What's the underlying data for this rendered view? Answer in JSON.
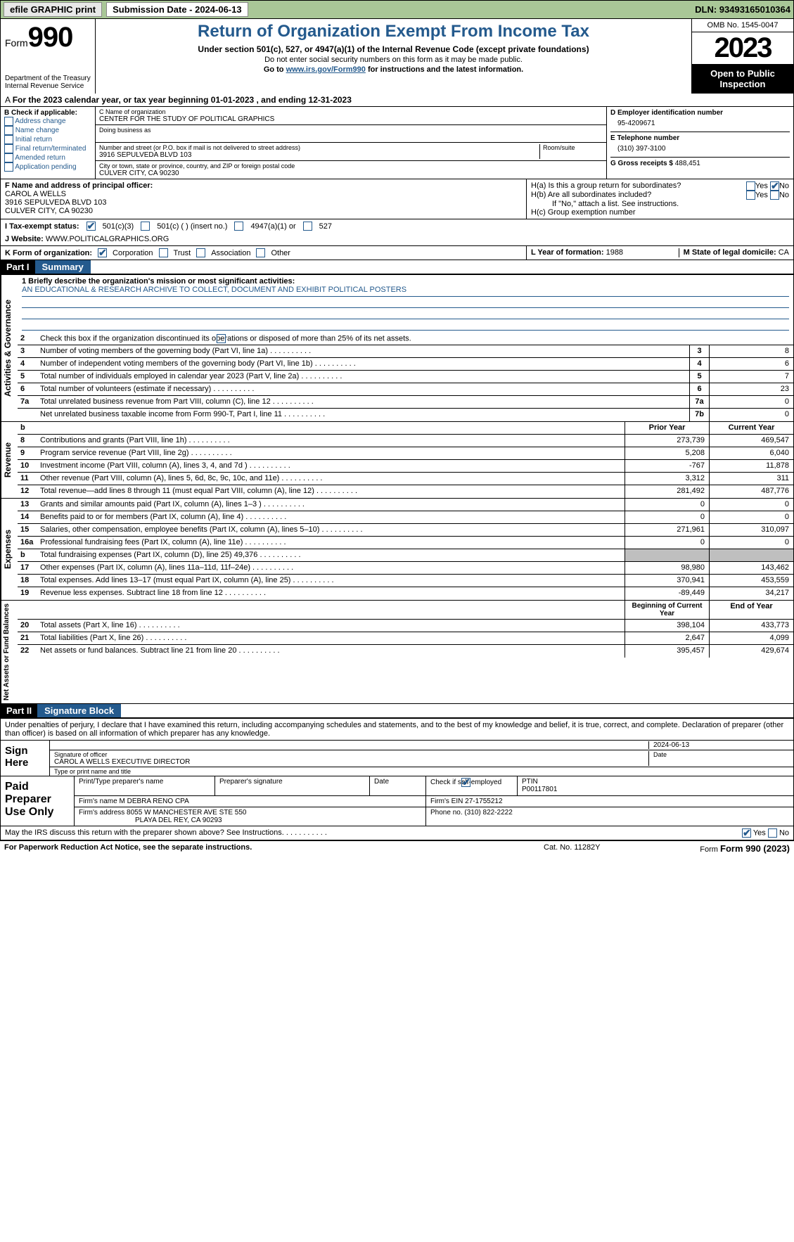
{
  "topbar": {
    "efile_btn": "efile GRAPHIC print",
    "submission": "Submission Date - 2024-06-13",
    "dln": "DLN: 93493165010364"
  },
  "header": {
    "form_prefix": "Form",
    "form_number": "990",
    "dept": "Department of the Treasury Internal Revenue Service",
    "title": "Return of Organization Exempt From Income Tax",
    "sub1": "Under section 501(c), 527, or 4947(a)(1) of the Internal Revenue Code (except private foundations)",
    "sub2": "Do not enter social security numbers on this form as it may be made public.",
    "sub3_pre": "Go to ",
    "sub3_link": "www.irs.gov/Form990",
    "sub3_post": " for instructions and the latest information.",
    "omb": "OMB No. 1545-0047",
    "year": "2023",
    "open": "Open to Public Inspection"
  },
  "taxyear": "For the 2023 calendar year, or tax year beginning 01-01-2023    , and ending 12-31-2023",
  "boxA": {
    "label": "A",
    "colB_label": "B Check if applicable:",
    "addr_change": "Address change",
    "name_change": "Name change",
    "initial": "Initial return",
    "final": "Final return/terminated",
    "amended": "Amended return",
    "app_pending": "Application pending"
  },
  "boxC": {
    "name_lbl": "C Name of organization",
    "name": "CENTER FOR THE STUDY OF POLITICAL GRAPHICS",
    "dba_lbl": "Doing business as",
    "addr_lbl": "Number and street (or P.O. box if mail is not delivered to street address)",
    "room_lbl": "Room/suite",
    "addr": "3916 SEPULVEDA BLVD 103",
    "city_lbl": "City or town, state or province, country, and ZIP or foreign postal code",
    "city": "CULVER CITY, CA  90230"
  },
  "boxD": {
    "ein_lbl": "D Employer identification number",
    "ein": "95-4209671",
    "tel_lbl": "E Telephone number",
    "tel": "(310) 397-3100",
    "gross_lbl": "G Gross receipts $",
    "gross": "488,451"
  },
  "boxF": {
    "lbl": "F  Name and address of principal officer:",
    "name": "CAROL A WELLS",
    "addr1": "3916 SEPULVEDA BLVD 103",
    "addr2": "CULVER CITY, CA  90230"
  },
  "boxH": {
    "ha": "H(a)  Is this a group return for subordinates?",
    "hb": "H(b)  Are all subordinates included?",
    "hb_note": "If \"No,\" attach a list. See instructions.",
    "hc": "H(c)  Group exemption number",
    "yes": "Yes",
    "no": "No"
  },
  "taxexempt": {
    "lbl": "I   Tax-exempt status:",
    "c3": "501(c)(3)",
    "c": "501(c) (  ) (insert no.)",
    "a1": "4947(a)(1) or",
    "s527": "527"
  },
  "website": {
    "lbl": "J   Website:",
    "val": "WWW.POLITICALGRAPHICS.ORG"
  },
  "formorg": {
    "lbl": "K Form of organization:",
    "corp": "Corporation",
    "trust": "Trust",
    "assoc": "Association",
    "other": "Other"
  },
  "yearform": {
    "lbl": "L Year of formation:",
    "val": "1988"
  },
  "domicile": {
    "lbl": "M State of legal domicile:",
    "val": "CA"
  },
  "part1": {
    "hdr": "Part I",
    "title": "Summary"
  },
  "summary": {
    "s1_lbl": "1   Briefly describe the organization's mission or most significant activities:",
    "mission": "AN EDUCATIONAL & RESEARCH ARCHIVE TO COLLECT, DOCUMENT AND EXHIBIT POLITICAL POSTERS",
    "s2": "Check this box       if the organization discontinued its operations or disposed of more than 25% of its net assets.",
    "rows_gov": [
      {
        "n": "3",
        "d": "Number of voting members of the governing body (Part VI, line 1a)",
        "b": "3",
        "v": "8"
      },
      {
        "n": "4",
        "d": "Number of independent voting members of the governing body (Part VI, line 1b)",
        "b": "4",
        "v": "6"
      },
      {
        "n": "5",
        "d": "Total number of individuals employed in calendar year 2023 (Part V, line 2a)",
        "b": "5",
        "v": "7"
      },
      {
        "n": "6",
        "d": "Total number of volunteers (estimate if necessary)",
        "b": "6",
        "v": "23"
      },
      {
        "n": "7a",
        "d": "Total unrelated business revenue from Part VIII, column (C), line 12",
        "b": "7a",
        "v": "0"
      },
      {
        "n": "",
        "d": "Net unrelated business taxable income from Form 990-T, Part I, line 11",
        "b": "7b",
        "v": "0"
      }
    ],
    "prior_hdr": "Prior Year",
    "curr_hdr": "Current Year",
    "rows_rev": [
      {
        "n": "8",
        "d": "Contributions and grants (Part VIII, line 1h)",
        "p": "273,739",
        "c": "469,547"
      },
      {
        "n": "9",
        "d": "Program service revenue (Part VIII, line 2g)",
        "p": "5,208",
        "c": "6,040"
      },
      {
        "n": "10",
        "d": "Investment income (Part VIII, column (A), lines 3, 4, and 7d )",
        "p": "-767",
        "c": "11,878"
      },
      {
        "n": "11",
        "d": "Other revenue (Part VIII, column (A), lines 5, 6d, 8c, 9c, 10c, and 11e)",
        "p": "3,312",
        "c": "311"
      },
      {
        "n": "12",
        "d": "Total revenue—add lines 8 through 11 (must equal Part VIII, column (A), line 12)",
        "p": "281,492",
        "c": "487,776"
      }
    ],
    "rows_exp": [
      {
        "n": "13",
        "d": "Grants and similar amounts paid (Part IX, column (A), lines 1–3 )",
        "p": "0",
        "c": "0"
      },
      {
        "n": "14",
        "d": "Benefits paid to or for members (Part IX, column (A), line 4)",
        "p": "0",
        "c": "0"
      },
      {
        "n": "15",
        "d": "Salaries, other compensation, employee benefits (Part IX, column (A), lines 5–10)",
        "p": "271,961",
        "c": "310,097"
      },
      {
        "n": "16a",
        "d": "Professional fundraising fees (Part IX, column (A), line 11e)",
        "p": "0",
        "c": "0"
      },
      {
        "n": "b",
        "d": "Total fundraising expenses (Part IX, column (D), line 25) 49,376",
        "p": "grey",
        "c": "grey"
      },
      {
        "n": "17",
        "d": "Other expenses (Part IX, column (A), lines 11a–11d, 11f–24e)",
        "p": "98,980",
        "c": "143,462"
      },
      {
        "n": "18",
        "d": "Total expenses. Add lines 13–17 (must equal Part IX, column (A), line 25)",
        "p": "370,941",
        "c": "453,559"
      },
      {
        "n": "19",
        "d": "Revenue less expenses. Subtract line 18 from line 12",
        "p": "-89,449",
        "c": "34,217"
      }
    ],
    "beg_hdr": "Beginning of Current Year",
    "end_hdr": "End of Year",
    "rows_net": [
      {
        "n": "20",
        "d": "Total assets (Part X, line 16)",
        "p": "398,104",
        "c": "433,773"
      },
      {
        "n": "21",
        "d": "Total liabilities (Part X, line 26)",
        "p": "2,647",
        "c": "4,099"
      },
      {
        "n": "22",
        "d": "Net assets or fund balances. Subtract line 21 from line 20",
        "p": "395,457",
        "c": "429,674"
      }
    ],
    "vtabs": {
      "gov": "Activities & Governance",
      "rev": "Revenue",
      "exp": "Expenses",
      "net": "Net Assets or Fund Balances"
    }
  },
  "part2": {
    "hdr": "Part II",
    "title": "Signature Block"
  },
  "sig": {
    "decl": "Under penalties of perjury, I declare that I have examined this return, including accompanying schedules and statements, and to the best of my knowledge and belief, it is true, correct, and complete. Declaration of preparer (other than officer) is based on all information of which preparer has any knowledge.",
    "sign_here": "Sign Here",
    "sig_officer": "Signature of officer",
    "officer": "CAROL A WELLS EXECUTIVE DIRECTOR",
    "type_name": "Type or print name and title",
    "date_lbl": "Date",
    "date": "2024-06-13"
  },
  "prep": {
    "label": "Paid Preparer Use Only",
    "print_lbl": "Print/Type preparer's name",
    "sig_lbl": "Preparer's signature",
    "date_lbl": "Date",
    "check_lbl": "Check         if self-employed",
    "ptin_lbl": "PTIN",
    "ptin": "P00117801",
    "firm_name_lbl": "Firm's name",
    "firm_name": "M DEBRA RENO CPA",
    "firm_ein_lbl": "Firm's EIN",
    "firm_ein": "27-1755212",
    "firm_addr_lbl": "Firm's address",
    "firm_addr1": "8055 W MANCHESTER AVE STE 550",
    "firm_addr2": "PLAYA DEL REY, CA  90293",
    "phone_lbl": "Phone no.",
    "phone": "(310) 822-2222"
  },
  "mayirs": {
    "q": "May the IRS discuss this return with the preparer shown above? See Instructions.",
    "yes": "Yes",
    "no": "No"
  },
  "footer": {
    "pra": "For Paperwork Reduction Act Notice, see the separate instructions.",
    "cat": "Cat. No. 11282Y",
    "form": "Form 990 (2023)"
  }
}
